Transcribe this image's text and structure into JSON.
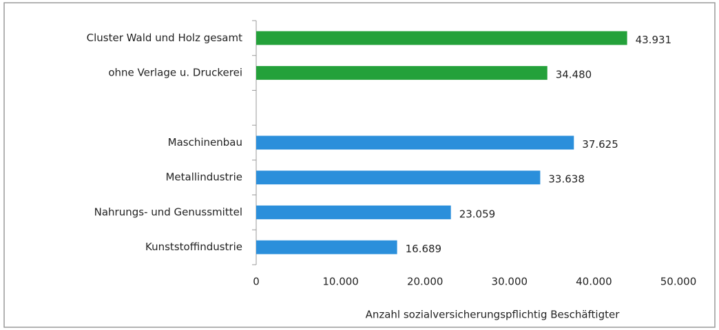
{
  "chart_data": {
    "type": "hbar",
    "categories": [
      "Cluster Wald und Holz gesamt",
      "ohne Verlage u. Druckerei",
      null,
      "Maschinenbau",
      "Metallindustrie",
      "Nahrungs- und Genussmittel",
      "Kunststoffindustrie"
    ],
    "values": [
      43931,
      34480,
      null,
      37625,
      33638,
      23059,
      16689
    ],
    "value_labels": [
      "43.931",
      "34.480",
      null,
      "37.625",
      "33.638",
      "23.059",
      "16.689"
    ],
    "colors": [
      "#24a13a",
      "#24a13a",
      null,
      "#2b8fdb",
      "#2b8fdb",
      "#2b8fdb",
      "#2b8fdb"
    ],
    "xlim": [
      0,
      50000
    ],
    "xticks": [
      0,
      {
        "value": 10000,
        "label": "10.000"
      },
      {
        "value": 20000,
        "label": "20.000"
      },
      {
        "value": 30000,
        "label": "30.000"
      },
      {
        "value": 40000,
        "label": "40.000"
      },
      {
        "value": 50000,
        "label": "50.000"
      }
    ],
    "xlabel": "Anzahl sozialversicherungspflichtig Beschäftigter",
    "grid": false
  }
}
